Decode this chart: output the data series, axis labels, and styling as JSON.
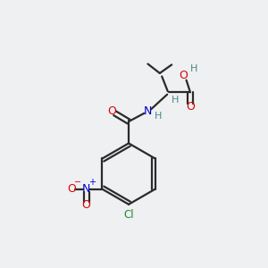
{
  "background_color": "#eef0f2",
  "bond_color": "#2a2a2a",
  "atom_colors": {
    "O": "#dd0000",
    "N": "#0000cc",
    "Cl": "#228833",
    "H": "#4a8888",
    "C": "#2a2a2a"
  },
  "figsize": [
    3.0,
    3.0
  ],
  "dpi": 100
}
